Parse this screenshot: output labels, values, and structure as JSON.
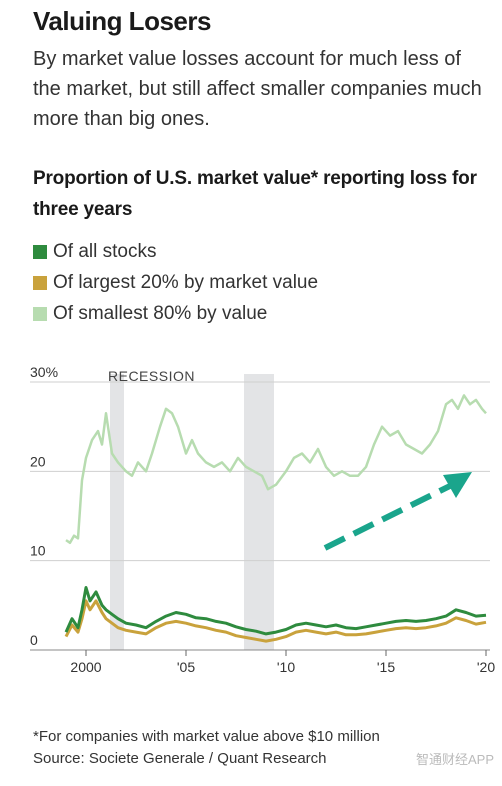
{
  "title": "Valuing Losers",
  "subtitle": "By market value losses account for much less of the market, but still affect smaller companies much more than big ones.",
  "watermark": "智通财经APP",
  "colors": {
    "all_stocks": "#2e8b3e",
    "largest_20": "#c9a23c",
    "smallest_80": "#b7dcb0",
    "recession": "#e3e4e6",
    "arrow": "#1aa58c",
    "grid": "#cfcfcf"
  },
  "chart_data": {
    "type": "line",
    "title": "Proportion of U.S. market value* reporting loss for three years",
    "footnote": "*For companies with market value above $10 million",
    "source": "Source: Societe Generale / Quant Research",
    "ylim": [
      0,
      30
    ],
    "y_ticks": [
      0,
      10,
      20,
      30
    ],
    "y_tick_labels": [
      "0",
      "10",
      "20",
      "30%"
    ],
    "xlim": [
      1999.0,
      2020.2
    ],
    "x_ticks": [
      2000,
      2005,
      2010,
      2015,
      2020
    ],
    "x_tick_labels": [
      "2000",
      "'05",
      "'10",
      "'15",
      "'20"
    ],
    "recession_label": "RECESSION",
    "recessions": [
      [
        2001.2,
        2001.9
      ],
      [
        2007.9,
        2009.4
      ]
    ],
    "annotation": "trend-arrow",
    "series": [
      {
        "name": "Of all stocks",
        "x": [
          1999.0,
          1999.3,
          1999.6,
          1999.8,
          2000.0,
          2000.2,
          2000.5,
          2000.8,
          2001.0,
          2001.3,
          2001.6,
          2002.0,
          2002.5,
          2003.0,
          2003.5,
          2004.0,
          2004.5,
          2005.0,
          2005.5,
          2006.0,
          2006.5,
          2007.0,
          2007.5,
          2008.0,
          2008.5,
          2009.0,
          2009.5,
          2010.0,
          2010.5,
          2011.0,
          2011.5,
          2012.0,
          2012.5,
          2013.0,
          2013.5,
          2014.0,
          2014.5,
          2015.0,
          2015.5,
          2016.0,
          2016.5,
          2017.0,
          2017.5,
          2018.0,
          2018.5,
          2019.0,
          2019.5,
          2020.0
        ],
        "values": [
          2.0,
          3.5,
          2.5,
          4.5,
          7.0,
          5.5,
          6.5,
          5.0,
          4.5,
          4.0,
          3.5,
          3.0,
          2.8,
          2.5,
          3.2,
          3.8,
          4.2,
          4.0,
          3.6,
          3.5,
          3.2,
          3.0,
          2.6,
          2.3,
          2.1,
          1.8,
          2.0,
          2.3,
          2.8,
          3.0,
          2.8,
          2.6,
          2.8,
          2.5,
          2.4,
          2.6,
          2.8,
          3.0,
          3.2,
          3.3,
          3.2,
          3.3,
          3.5,
          3.8,
          4.5,
          4.2,
          3.8,
          3.9
        ]
      },
      {
        "name": "Of largest 20% by market value",
        "x": [
          1999.0,
          1999.3,
          1999.6,
          1999.8,
          2000.0,
          2000.2,
          2000.5,
          2000.8,
          2001.0,
          2001.3,
          2001.6,
          2002.0,
          2002.5,
          2003.0,
          2003.5,
          2004.0,
          2004.5,
          2005.0,
          2005.5,
          2006.0,
          2006.5,
          2007.0,
          2007.5,
          2008.0,
          2008.5,
          2009.0,
          2009.5,
          2010.0,
          2010.5,
          2011.0,
          2011.5,
          2012.0,
          2012.5,
          2013.0,
          2013.5,
          2014.0,
          2014.5,
          2015.0,
          2015.5,
          2016.0,
          2016.5,
          2017.0,
          2017.5,
          2018.0,
          2018.5,
          2019.0,
          2019.5,
          2020.0
        ],
        "values": [
          1.5,
          2.8,
          2.0,
          3.5,
          5.5,
          4.5,
          5.5,
          4.2,
          3.5,
          3.0,
          2.5,
          2.2,
          2.0,
          1.8,
          2.5,
          3.0,
          3.2,
          3.0,
          2.7,
          2.5,
          2.2,
          2.0,
          1.6,
          1.4,
          1.2,
          1.0,
          1.2,
          1.5,
          2.0,
          2.2,
          2.0,
          1.8,
          2.0,
          1.7,
          1.7,
          1.8,
          2.0,
          2.2,
          2.4,
          2.5,
          2.4,
          2.5,
          2.7,
          3.0,
          3.6,
          3.3,
          2.9,
          3.1
        ]
      },
      {
        "name": "Of smallest 80% by value",
        "x": [
          1999.0,
          1999.2,
          1999.4,
          1999.6,
          1999.8,
          2000.0,
          2000.3,
          2000.6,
          2000.8,
          2001.0,
          2001.3,
          2001.6,
          2002.0,
          2002.3,
          2002.6,
          2003.0,
          2003.3,
          2003.7,
          2004.0,
          2004.3,
          2004.6,
          2005.0,
          2005.3,
          2005.6,
          2006.0,
          2006.4,
          2006.8,
          2007.2,
          2007.6,
          2008.0,
          2008.4,
          2008.8,
          2009.1,
          2009.5,
          2010.0,
          2010.4,
          2010.8,
          2011.2,
          2011.6,
          2012.0,
          2012.4,
          2012.8,
          2013.2,
          2013.6,
          2014.0,
          2014.4,
          2014.8,
          2015.2,
          2015.6,
          2016.0,
          2016.4,
          2016.8,
          2017.2,
          2017.6,
          2018.0,
          2018.3,
          2018.6,
          2018.9,
          2019.2,
          2019.5,
          2019.8,
          2020.0
        ],
        "values": [
          12.3,
          12.0,
          12.8,
          12.5,
          19.0,
          21.5,
          23.5,
          24.5,
          23.0,
          26.5,
          22.0,
          21.0,
          20.0,
          19.5,
          21.0,
          20.0,
          22.0,
          25.0,
          27.0,
          26.5,
          25.0,
          22.0,
          23.5,
          22.0,
          21.0,
          20.5,
          21.0,
          20.0,
          21.5,
          20.5,
          20.0,
          19.5,
          18.0,
          18.5,
          20.0,
          21.5,
          22.0,
          21.0,
          22.5,
          20.5,
          19.5,
          20.0,
          19.5,
          19.5,
          20.5,
          23.0,
          25.0,
          24.0,
          24.5,
          23.0,
          22.5,
          22.0,
          23.0,
          24.5,
          27.5,
          28.0,
          27.0,
          28.5,
          27.5,
          28.0,
          27.0,
          26.5
        ]
      }
    ]
  }
}
